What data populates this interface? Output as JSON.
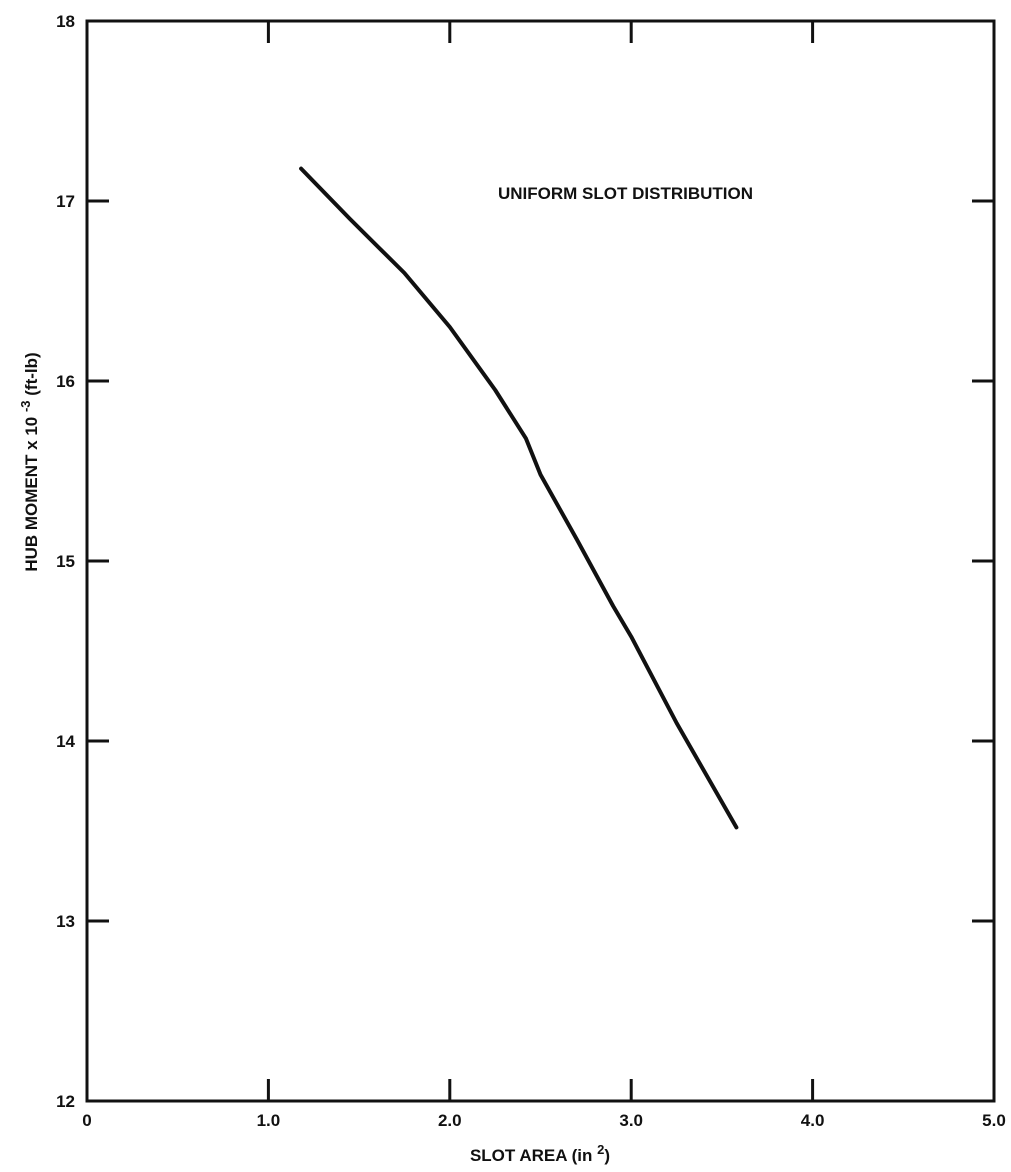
{
  "chart_data": {
    "type": "line",
    "title": "",
    "xlabel": "SLOT AREA (in",
    "xlabel_superscript": "2",
    "xlabel_suffix": ")",
    "ylabel": "HUB MOMENT x 10",
    "ylabel_superscript": "-3",
    "ylabel_suffix": " (ft-lb)",
    "xlim": [
      0,
      5.0
    ],
    "ylim": [
      12,
      18
    ],
    "x_ticks": [
      0,
      1.0,
      2.0,
      3.0,
      4.0,
      5.0
    ],
    "x_tick_labels": [
      "0",
      "1.0",
      "2.0",
      "3.0",
      "4.0",
      "5.0"
    ],
    "y_ticks": [
      12,
      13,
      14,
      15,
      16,
      17,
      18
    ],
    "y_tick_labels": [
      "12",
      "13",
      "14",
      "15",
      "16",
      "17",
      "18"
    ],
    "grid": false,
    "annotation": "UNIFORM SLOT DISTRIBUTION",
    "series": [
      {
        "x": [
          1.18,
          1.45,
          1.75,
          2.0,
          2.25,
          2.42,
          2.5,
          2.7,
          2.9,
          3.0,
          3.25,
          3.58
        ],
        "y": [
          17.18,
          16.9,
          16.6,
          16.3,
          15.95,
          15.68,
          15.48,
          15.12,
          14.75,
          14.58,
          14.1,
          13.52
        ]
      }
    ]
  }
}
